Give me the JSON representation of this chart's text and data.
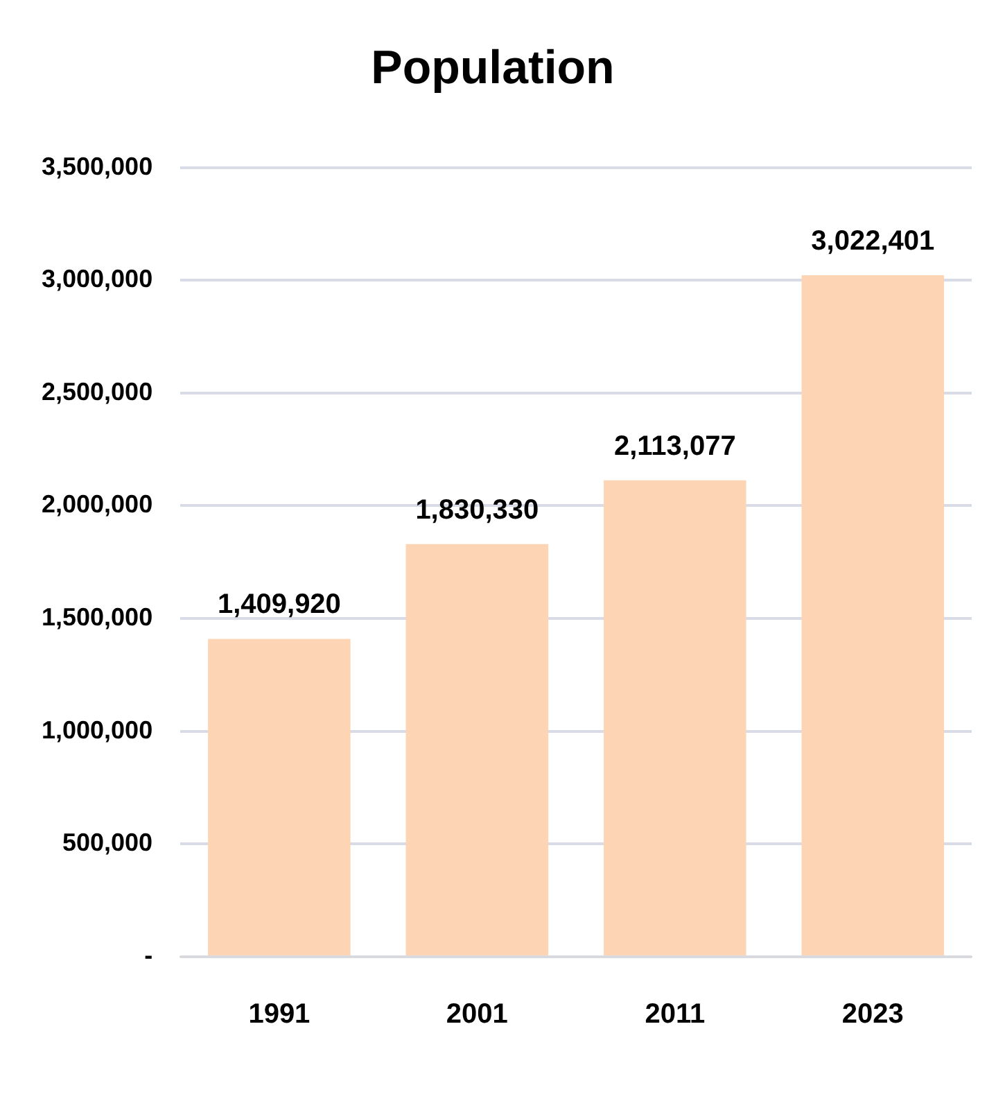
{
  "chart_data": {
    "type": "bar",
    "title": "Population",
    "categories": [
      "1991",
      "2001",
      "2011",
      "2023"
    ],
    "values": [
      1409920,
      1830330,
      2113077,
      3022401
    ],
    "value_labels": [
      "1,409,920",
      "1,830,330",
      "2,113,077",
      "3,022,401"
    ],
    "color": "#fdd5b4",
    "ylim": [
      0,
      3500000
    ],
    "yticks": [
      {
        "value": 0,
        "label": "-"
      },
      {
        "value": 500000,
        "label": "500,000"
      },
      {
        "value": 1000000,
        "label": "1,000,000"
      },
      {
        "value": 1500000,
        "label": "1,500,000"
      },
      {
        "value": 2000000,
        "label": "2,000,000"
      },
      {
        "value": 2500000,
        "label": "2,500,000"
      },
      {
        "value": 3000000,
        "label": "3,000,000"
      },
      {
        "value": 3500000,
        "label": "3,500,000"
      }
    ],
    "grid": "y",
    "legend": false
  }
}
